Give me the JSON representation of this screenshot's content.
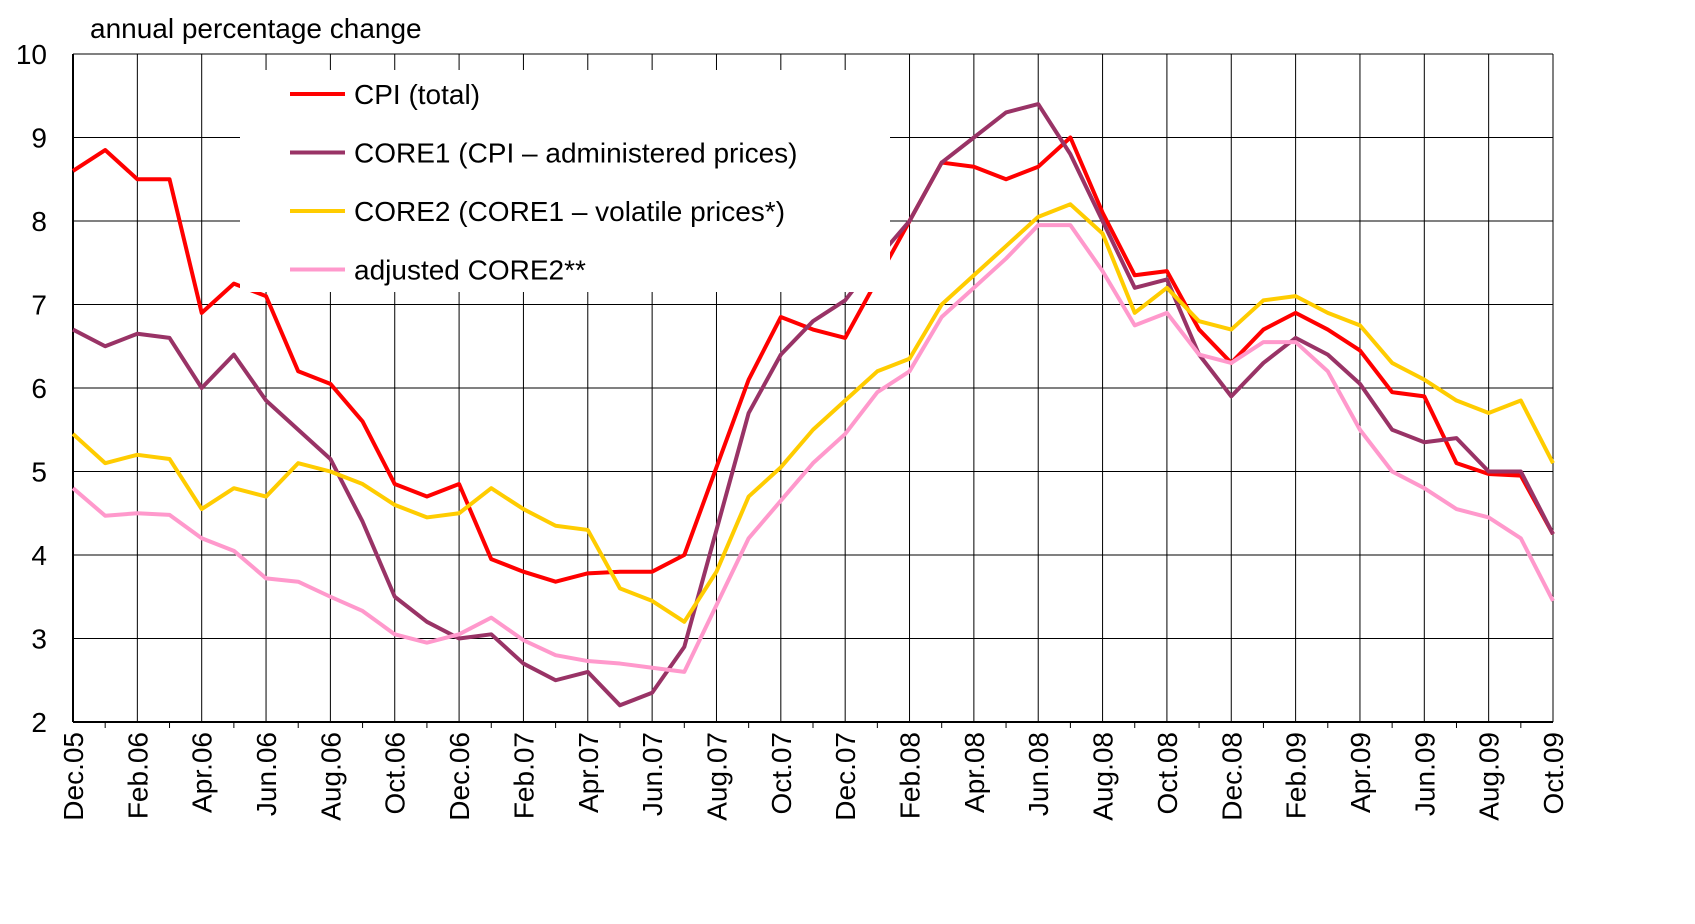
{
  "chart_data": {
    "type": "line",
    "y_label": "annual percentage change",
    "categories": [
      "Dec.05",
      null,
      "Feb.06",
      null,
      "Apr.06",
      null,
      "Jun.06",
      null,
      "Aug.06",
      null,
      "Oct.06",
      null,
      "Dec.06",
      null,
      "Feb.07",
      null,
      "Apr.07",
      null,
      "Jun.07",
      null,
      "Aug.07",
      null,
      "Oct.07",
      null,
      "Dec.07",
      null,
      "Feb.08",
      null,
      "Apr.08",
      null,
      "Jun.08",
      null,
      "Aug.08",
      null,
      "Oct.08",
      null,
      "Dec.08",
      null,
      "Feb.09",
      null,
      "Apr.09",
      null,
      "Jun.09",
      null,
      "Aug.09",
      null,
      "Oct.09"
    ],
    "series": [
      {
        "name": "CPI (total)",
        "color": "#ff0000",
        "values": [
          8.6,
          8.85,
          8.5,
          8.5,
          6.9,
          7.25,
          7.1,
          6.2,
          6.05,
          5.6,
          4.85,
          4.7,
          4.85,
          3.95,
          3.8,
          3.68,
          3.78,
          3.8,
          3.8,
          4.0,
          5.05,
          6.1,
          6.85,
          6.7,
          6.6,
          7.3,
          8.0,
          8.7,
          8.65,
          8.5,
          8.65,
          9.0,
          8.1,
          7.35,
          7.4,
          6.7,
          6.3,
          6.7,
          6.9,
          6.7,
          6.45,
          5.95,
          5.9,
          5.1,
          4.97,
          4.95,
          4.25
        ]
      },
      {
        "name": "CORE1 (CPI – administered prices)",
        "color": "#993366",
        "values": [
          6.7,
          6.5,
          6.65,
          6.6,
          6.0,
          6.4,
          5.85,
          5.5,
          5.15,
          4.4,
          3.5,
          3.2,
          3.0,
          3.05,
          2.7,
          2.5,
          2.6,
          2.2,
          2.35,
          2.9,
          4.3,
          5.7,
          6.4,
          6.8,
          7.05,
          7.55,
          8.0,
          8.7,
          9.0,
          9.3,
          9.4,
          8.8,
          8.0,
          7.2,
          7.3,
          6.4,
          5.9,
          6.3,
          6.6,
          6.4,
          6.05,
          5.5,
          5.35,
          5.4,
          5.0,
          5.0,
          4.25
        ]
      },
      {
        "name": "CORE2 (CORE1 – volatile prices*)",
        "color": "#ffcc00",
        "values": [
          5.45,
          5.1,
          5.2,
          5.15,
          4.55,
          4.8,
          4.7,
          5.1,
          5.0,
          4.85,
          4.6,
          4.45,
          4.5,
          4.8,
          4.55,
          4.35,
          4.3,
          3.6,
          3.45,
          3.2,
          3.8,
          4.7,
          5.05,
          5.5,
          5.85,
          6.2,
          6.35,
          7.0,
          7.35,
          7.7,
          8.05,
          8.2,
          7.85,
          6.9,
          7.2,
          6.8,
          6.7,
          7.05,
          7.1,
          6.9,
          6.75,
          6.3,
          6.1,
          5.85,
          5.7,
          5.85,
          5.1
        ]
      },
      {
        "name": "adjusted CORE2**",
        "color": "#ff99cc",
        "values": [
          4.8,
          4.47,
          4.5,
          4.48,
          4.2,
          4.05,
          3.72,
          3.68,
          3.5,
          3.33,
          3.05,
          2.95,
          3.05,
          3.25,
          2.98,
          2.8,
          2.73,
          2.7,
          2.65,
          2.6,
          3.4,
          4.2,
          4.65,
          5.1,
          5.45,
          5.95,
          6.2,
          6.85,
          7.2,
          7.55,
          7.95,
          7.95,
          7.4,
          6.75,
          6.9,
          6.4,
          6.3,
          6.55,
          6.55,
          6.2,
          5.5,
          5.0,
          4.8,
          4.55,
          4.45,
          4.2,
          3.45
        ]
      }
    ],
    "ylim": [
      2,
      10
    ],
    "yticks": [
      2,
      3,
      4,
      5,
      6,
      7,
      8,
      9,
      10
    ],
    "grid": true,
    "legend": "top-left"
  }
}
